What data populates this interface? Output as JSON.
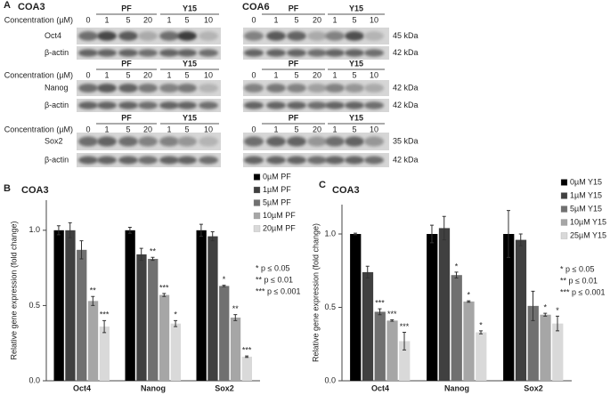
{
  "panel_a": {
    "label": "A",
    "cell_lines": [
      "COA3",
      "COA6"
    ],
    "concentration_label": "Concentration (µM)",
    "groups": [
      "PF",
      "Y15"
    ],
    "lanes": [
      "0",
      "1",
      "5",
      "20",
      "1",
      "5",
      "10"
    ],
    "proteins": [
      "Oct4",
      "Nanog",
      "Sox2"
    ],
    "loading_control": "β-actin",
    "sizes": [
      [
        "45 kDa",
        "42 kDa"
      ],
      [
        "42 kDa",
        "42 kDa"
      ],
      [
        "35 kDa",
        "42 kDa"
      ]
    ]
  },
  "chart_data": [
    {
      "type": "bar",
      "panel": "B",
      "title": "COA3",
      "ylabel": "Relative gene expression (fold change)",
      "categories": [
        "Oct4",
        "Nanog",
        "Sox2"
      ],
      "ylim": [
        0,
        1.2
      ],
      "yticks": [
        {
          "value": 0,
          "label": "0.0"
        },
        {
          "value": 0.5,
          "label": "0.5"
        },
        {
          "value": 1,
          "label": "1.0"
        }
      ],
      "series": [
        {
          "name": "0µM PF",
          "color": "#000000",
          "values": [
            1.0,
            1.0,
            1.0
          ],
          "errors": [
            0.03,
            0.02,
            0.04
          ],
          "stars": [
            null,
            null,
            null
          ]
        },
        {
          "name": "1µM PF",
          "color": "#404040",
          "values": [
            1.0,
            0.84,
            0.96
          ],
          "errors": [
            0.05,
            0.04,
            0.03
          ],
          "stars": [
            null,
            null,
            null
          ]
        },
        {
          "name": "5µM PF",
          "color": "#707070",
          "values": [
            0.87,
            0.81,
            0.63
          ],
          "errors": [
            0.06,
            0.01,
            0.005
          ],
          "stars": [
            null,
            "**",
            "*"
          ]
        },
        {
          "name": "10µM PF",
          "color": "#a6a6a6",
          "values": [
            0.53,
            0.57,
            0.42
          ],
          "errors": [
            0.03,
            0.01,
            0.02
          ],
          "stars": [
            "**",
            "***",
            "**"
          ]
        },
        {
          "name": "20µM PF",
          "color": "#d9d9d9",
          "values": [
            0.36,
            0.38,
            0.16
          ],
          "errors": [
            0.04,
            0.02,
            0.005
          ],
          "stars": [
            "***",
            "*",
            "***"
          ]
        }
      ],
      "notes": [
        "* p ≤ 0.05",
        "** p ≤ 0.01",
        "*** p ≤ 0.001"
      ]
    },
    {
      "type": "bar",
      "panel": "C",
      "title": "COA3",
      "ylabel": "Relative gene expression (fold change)",
      "categories": [
        "Oct4",
        "Nanog",
        "Sox2"
      ],
      "ylim": [
        0,
        1.2
      ],
      "yticks": [
        {
          "value": 0,
          "label": "0.0"
        },
        {
          "value": 0.5,
          "label": "0.5"
        },
        {
          "value": 1,
          "label": "1.0"
        }
      ],
      "series": [
        {
          "name": "0µM Y15",
          "color": "#000000",
          "values": [
            1.0,
            1.0,
            1.0
          ],
          "errors": [
            0.005,
            0.06,
            0.16
          ],
          "stars": [
            null,
            null,
            null
          ]
        },
        {
          "name": "1µM Y15",
          "color": "#404040",
          "values": [
            0.74,
            1.04,
            0.96
          ],
          "errors": [
            0.04,
            0.08,
            0.04
          ],
          "stars": [
            null,
            null,
            null
          ]
        },
        {
          "name": "5µM Y15",
          "color": "#707070",
          "values": [
            0.47,
            0.72,
            0.51
          ],
          "errors": [
            0.02,
            0.02,
            0.1
          ],
          "stars": [
            "***",
            "*",
            null
          ]
        },
        {
          "name": "10µM Y15",
          "color": "#a6a6a6",
          "values": [
            0.41,
            0.54,
            0.45
          ],
          "errors": [
            0.005,
            0.005,
            0.01
          ],
          "stars": [
            "***",
            "*",
            "*"
          ]
        },
        {
          "name": "25µM Y15",
          "color": "#d9d9d9",
          "values": [
            0.27,
            0.33,
            0.39
          ],
          "errors": [
            0.06,
            0.01,
            0.05
          ],
          "stars": [
            "***",
            "*",
            "*"
          ]
        }
      ],
      "notes": [
        "* p ≤ 0.05",
        "** p ≤ 0.01",
        "*** p ≤ 0.001"
      ]
    }
  ]
}
